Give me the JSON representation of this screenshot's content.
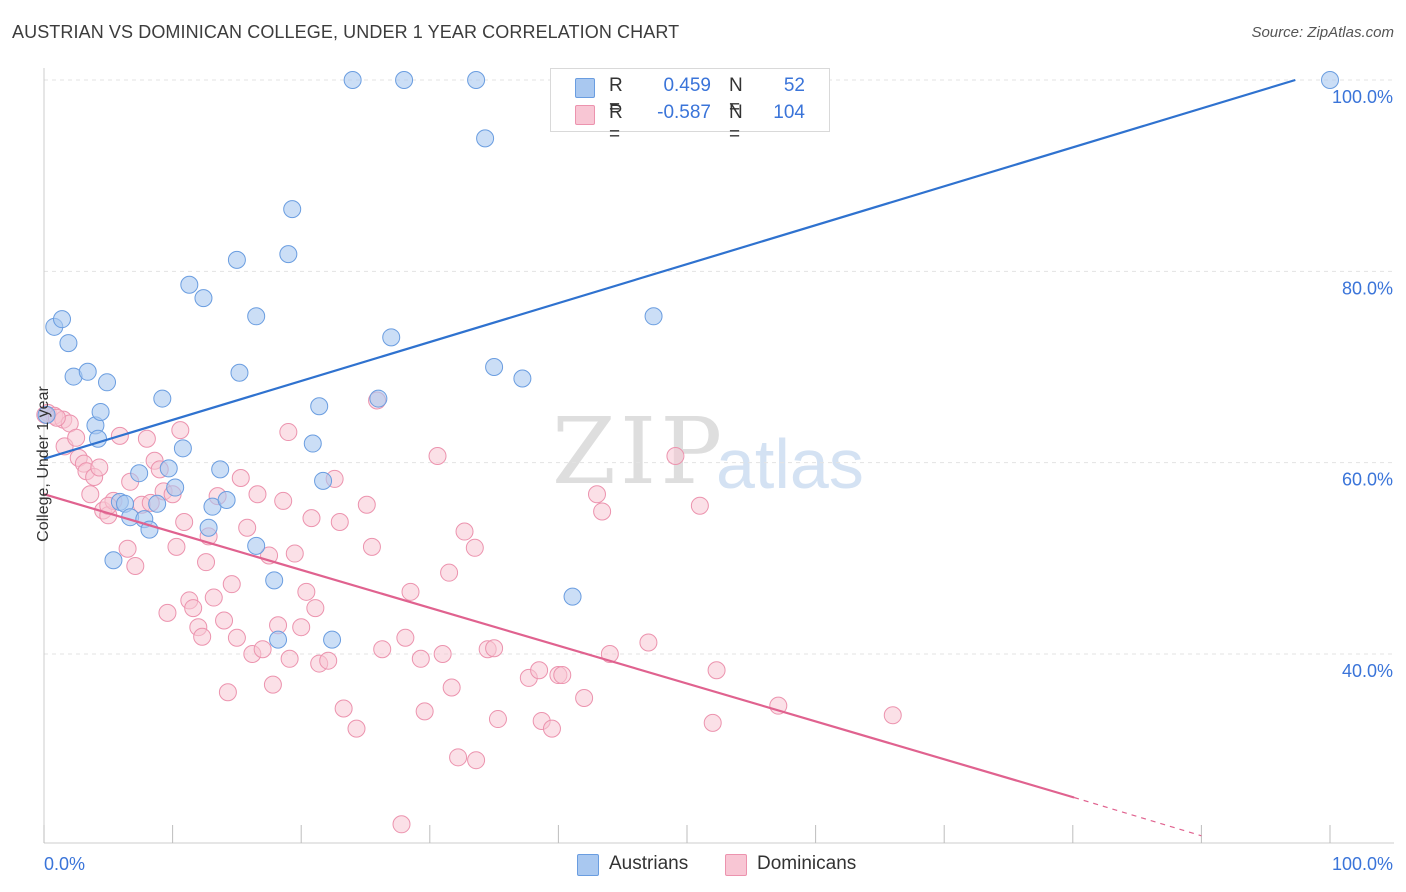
{
  "title": "AUSTRIAN VS DOMINICAN COLLEGE, UNDER 1 YEAR CORRELATION CHART",
  "source": "Source: ZipAtlas.com",
  "watermark": {
    "part1": "ZIP",
    "part2": "atlas"
  },
  "legend_top": {
    "rows": [
      {
        "r_label": "R =",
        "r_value": "0.459",
        "n_label": "N =",
        "n_value": "52"
      },
      {
        "r_label": "R =",
        "r_value": "-0.587",
        "n_label": "N =",
        "n_value": "104"
      }
    ]
  },
  "legend_bottom": {
    "items": [
      {
        "label": "Austrians"
      },
      {
        "label": "Dominicans"
      }
    ]
  },
  "colors": {
    "austrians_fill": "#a9c8f0",
    "austrians_stroke": "#6a9de0",
    "austrians_line": "#2f72cf",
    "dominicans_fill": "#f8c6d4",
    "dominicans_stroke": "#ec93ae",
    "dominicans_line": "#e0628f",
    "tick_label": "#3a74d9",
    "grid": "#e3e3e3"
  },
  "chart_data": {
    "type": "scatter",
    "title": "AUSTRIAN VS DOMINICAN COLLEGE, UNDER 1 YEAR CORRELATION CHART",
    "xlabel": "",
    "ylabel": "College, Under 1 year",
    "xlim": [
      0,
      100
    ],
    "ylim": [
      18,
      100
    ],
    "x_tick_labels": [
      "0.0%",
      "100.0%"
    ],
    "y_ticks": [
      40,
      60,
      80,
      100
    ],
    "y_tick_labels": [
      "40.0%",
      "60.0%",
      "80.0%",
      "100.0%"
    ],
    "grid": true,
    "series": [
      {
        "name": "Austrians",
        "R": 0.459,
        "N": 52,
        "trend": {
          "x": [
            0,
            97.3
          ],
          "y": [
            60.4,
            100.0
          ]
        },
        "points": [
          [
            0.8,
            74.2
          ],
          [
            1.4,
            75.0
          ],
          [
            1.9,
            72.5
          ],
          [
            2.3,
            69.0
          ],
          [
            3.4,
            69.5
          ],
          [
            4.0,
            63.9
          ],
          [
            4.2,
            62.5
          ],
          [
            4.4,
            65.3
          ],
          [
            4.9,
            68.4
          ],
          [
            5.4,
            49.8
          ],
          [
            5.9,
            55.9
          ],
          [
            6.3,
            55.7
          ],
          [
            6.7,
            54.3
          ],
          [
            7.4,
            58.9
          ],
          [
            7.8,
            54.1
          ],
          [
            8.2,
            53.0
          ],
          [
            8.8,
            55.7
          ],
          [
            9.2,
            66.7
          ],
          [
            9.7,
            59.4
          ],
          [
            10.2,
            57.4
          ],
          [
            10.8,
            61.5
          ],
          [
            11.3,
            78.6
          ],
          [
            12.4,
            77.2
          ],
          [
            12.8,
            53.2
          ],
          [
            13.1,
            55.4
          ],
          [
            13.7,
            59.3
          ],
          [
            14.2,
            56.1
          ],
          [
            15.0,
            81.2
          ],
          [
            15.2,
            69.4
          ],
          [
            16.5,
            75.3
          ],
          [
            16.5,
            51.3
          ],
          [
            17.9,
            47.7
          ],
          [
            18.2,
            41.5
          ],
          [
            19.0,
            81.8
          ],
          [
            19.3,
            86.5
          ],
          [
            20.9,
            62.0
          ],
          [
            21.4,
            65.9
          ],
          [
            21.7,
            58.1
          ],
          [
            22.4,
            41.5
          ],
          [
            24.0,
            100.0
          ],
          [
            26.0,
            66.7
          ],
          [
            27.0,
            73.1
          ],
          [
            28.0,
            100.0
          ],
          [
            33.6,
            100.0
          ],
          [
            34.3,
            93.9
          ],
          [
            35.0,
            70.0
          ],
          [
            37.2,
            68.8
          ],
          [
            41.1,
            46.0
          ],
          [
            47.0,
            96.5
          ],
          [
            47.4,
            75.3
          ],
          [
            100.0,
            100.0
          ],
          [
            0.2,
            65.0
          ]
        ]
      },
      {
        "name": "Dominicans",
        "R": -0.587,
        "N": 104,
        "trend": {
          "x": [
            0,
            80.1
          ],
          "y": [
            56.7,
            25.0
          ]
        },
        "trend_dashed": {
          "x": [
            80.1,
            90.0
          ],
          "y": [
            25.0,
            21.0
          ]
        },
        "points": [
          [
            0.3,
            65.2
          ],
          [
            0.8,
            64.9
          ],
          [
            1.5,
            64.5
          ],
          [
            1.6,
            61.7
          ],
          [
            2.0,
            64.1
          ],
          [
            2.5,
            62.6
          ],
          [
            2.7,
            60.5
          ],
          [
            3.1,
            59.9
          ],
          [
            3.3,
            59.1
          ],
          [
            3.6,
            56.7
          ],
          [
            3.9,
            58.5
          ],
          [
            4.3,
            59.5
          ],
          [
            4.6,
            55.0
          ],
          [
            5.0,
            54.5
          ],
          [
            5.4,
            56.0
          ],
          [
            5.9,
            62.8
          ],
          [
            6.5,
            51.0
          ],
          [
            6.7,
            58.0
          ],
          [
            7.1,
            49.2
          ],
          [
            7.6,
            55.6
          ],
          [
            8.0,
            62.5
          ],
          [
            8.3,
            55.8
          ],
          [
            8.6,
            60.2
          ],
          [
            9.0,
            59.3
          ],
          [
            9.3,
            57.0
          ],
          [
            9.6,
            44.3
          ],
          [
            10.0,
            56.7
          ],
          [
            10.3,
            51.2
          ],
          [
            10.6,
            63.4
          ],
          [
            10.9,
            53.8
          ],
          [
            11.3,
            45.6
          ],
          [
            11.6,
            44.8
          ],
          [
            12.0,
            42.8
          ],
          [
            12.3,
            41.8
          ],
          [
            12.6,
            49.6
          ],
          [
            12.8,
            52.3
          ],
          [
            13.2,
            45.9
          ],
          [
            13.5,
            56.5
          ],
          [
            14.0,
            43.5
          ],
          [
            14.3,
            36.0
          ],
          [
            14.6,
            47.3
          ],
          [
            15.0,
            41.7
          ],
          [
            15.3,
            58.4
          ],
          [
            15.8,
            53.2
          ],
          [
            16.2,
            40.0
          ],
          [
            16.6,
            56.7
          ],
          [
            17.0,
            40.5
          ],
          [
            17.5,
            50.3
          ],
          [
            17.8,
            36.8
          ],
          [
            18.2,
            43.0
          ],
          [
            18.6,
            56.0
          ],
          [
            19.0,
            63.2
          ],
          [
            19.1,
            39.5
          ],
          [
            19.5,
            50.5
          ],
          [
            20.0,
            42.8
          ],
          [
            20.4,
            46.5
          ],
          [
            20.8,
            54.2
          ],
          [
            21.1,
            44.8
          ],
          [
            21.4,
            39.0
          ],
          [
            22.1,
            39.3
          ],
          [
            22.6,
            58.3
          ],
          [
            23.0,
            53.8
          ],
          [
            23.3,
            34.3
          ],
          [
            24.3,
            32.2
          ],
          [
            25.1,
            55.6
          ],
          [
            25.5,
            51.2
          ],
          [
            25.9,
            66.5
          ],
          [
            26.3,
            40.5
          ],
          [
            27.8,
            22.2
          ],
          [
            28.1,
            41.7
          ],
          [
            28.5,
            46.5
          ],
          [
            29.3,
            39.5
          ],
          [
            29.6,
            34.0
          ],
          [
            30.6,
            60.7
          ],
          [
            31.0,
            40.0
          ],
          [
            31.5,
            48.5
          ],
          [
            31.7,
            36.5
          ],
          [
            32.2,
            29.2
          ],
          [
            32.7,
            52.8
          ],
          [
            33.5,
            51.1
          ],
          [
            33.6,
            28.9
          ],
          [
            34.5,
            40.5
          ],
          [
            35.0,
            40.6
          ],
          [
            35.3,
            33.2
          ],
          [
            37.7,
            37.5
          ],
          [
            38.5,
            38.3
          ],
          [
            38.7,
            33.0
          ],
          [
            39.5,
            32.2
          ],
          [
            40.0,
            37.8
          ],
          [
            40.3,
            37.8
          ],
          [
            42.0,
            35.4
          ],
          [
            43.0,
            56.7
          ],
          [
            43.4,
            54.9
          ],
          [
            44.0,
            40.0
          ],
          [
            47.0,
            41.2
          ],
          [
            49.1,
            60.7
          ],
          [
            51.0,
            55.5
          ],
          [
            52.0,
            32.8
          ],
          [
            52.3,
            38.3
          ],
          [
            57.1,
            34.6
          ],
          [
            66.0,
            33.6
          ],
          [
            0.1,
            65.0
          ],
          [
            1.0,
            64.7
          ],
          [
            5.0,
            55.5
          ]
        ]
      }
    ]
  }
}
